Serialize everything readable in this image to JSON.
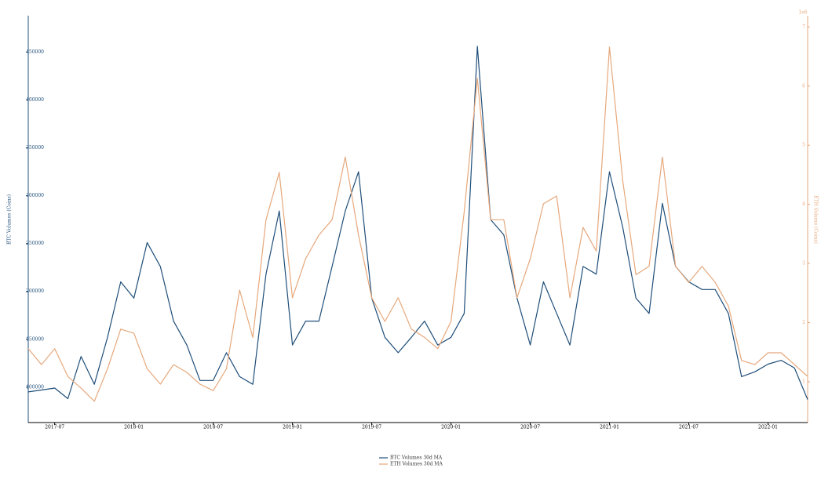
{
  "chart_data": {
    "type": "line",
    "y_label": "BTC Volumes (Coins)",
    "y2_label": "ETH Volume (Coins)",
    "y2_offset_label": "1e6",
    "x": [
      "2017-05",
      "2017-06",
      "2017-07",
      "2017-08",
      "2017-09",
      "2017-10",
      "2017-11",
      "2017-12",
      "2018-01",
      "2018-02",
      "2018-03",
      "2018-04",
      "2018-05",
      "2018-06",
      "2018-07",
      "2018-08",
      "2018-09",
      "2018-10",
      "2018-11",
      "2018-12",
      "2019-01",
      "2019-02",
      "2019-03",
      "2019-04",
      "2019-05",
      "2019-06",
      "2019-07",
      "2019-08",
      "2019-09",
      "2019-10",
      "2019-11",
      "2019-12",
      "2020-01",
      "2020-02",
      "2020-03",
      "2020-04",
      "2020-05",
      "2020-06",
      "2020-07",
      "2020-08",
      "2020-09",
      "2020-10",
      "2020-11",
      "2020-12",
      "2021-01",
      "2021-02",
      "2021-03",
      "2021-04",
      "2021-05",
      "2021-06",
      "2021-07",
      "2021-08",
      "2021-09",
      "2021-10",
      "2021-11",
      "2021-12",
      "2022-01",
      "2022-02",
      "2022-03",
      "2022-04"
    ],
    "xlim": [
      "2017-05",
      "2022-04"
    ],
    "xticks": [
      "2017-07",
      "2018-01",
      "2018-07",
      "2019-01",
      "2019-07",
      "2020-01",
      "2020-07",
      "2021-01",
      "2021-07",
      "2022-01"
    ],
    "ylim": [
      63000,
      488000
    ],
    "yticks": [
      100000,
      150000,
      200000,
      250000,
      300000,
      350000,
      400000,
      450000
    ],
    "y2lim": [
      0.31,
      7.19
    ],
    "y2ticks": [
      1,
      2,
      3,
      4,
      5,
      6,
      7
    ],
    "series": [
      {
        "name": "BTC Volumes 30d MA",
        "color": "#1f4e79",
        "axis": "y",
        "values": [
          95000,
          97000,
          99000,
          88000,
          132000,
          103000,
          152000,
          210000,
          193000,
          251000,
          226000,
          169000,
          144000,
          107000,
          107000,
          136000,
          111000,
          103000,
          218000,
          284000,
          144000,
          169000,
          169000,
          226000,
          284000,
          325000,
          193000,
          152000,
          136000,
          152000,
          169000,
          144000,
          152000,
          177000,
          456000,
          275000,
          259000,
          193000,
          144000,
          210000,
          177000,
          144000,
          226000,
          218000,
          325000,
          267000,
          193000,
          177000,
          292000,
          226000,
          210000,
          202000,
          202000,
          177000,
          111000,
          116000,
          124000,
          128000,
          120000,
          87000
        ]
      },
      {
        "name": "ETH Volumes 30d MA",
        "color": "#e6a87c",
        "axis": "y2",
        "values": [
          1.56,
          1.29,
          1.56,
          1.09,
          0.89,
          0.67,
          1.22,
          1.89,
          1.82,
          1.22,
          0.96,
          1.29,
          1.16,
          0.96,
          0.85,
          1.22,
          2.55,
          1.75,
          3.74,
          4.54,
          2.42,
          3.08,
          3.48,
          3.74,
          4.8,
          3.48,
          2.42,
          2.02,
          2.42,
          1.89,
          1.75,
          1.56,
          2.02,
          3.87,
          6.13,
          3.74,
          3.74,
          2.42,
          3.08,
          4.01,
          4.14,
          2.42,
          3.61,
          3.21,
          6.66,
          4.4,
          2.81,
          2.95,
          4.8,
          2.95,
          2.68,
          2.95,
          2.68,
          2.28,
          1.36,
          1.29,
          1.49,
          1.49,
          1.29,
          1.09
        ]
      }
    ]
  }
}
